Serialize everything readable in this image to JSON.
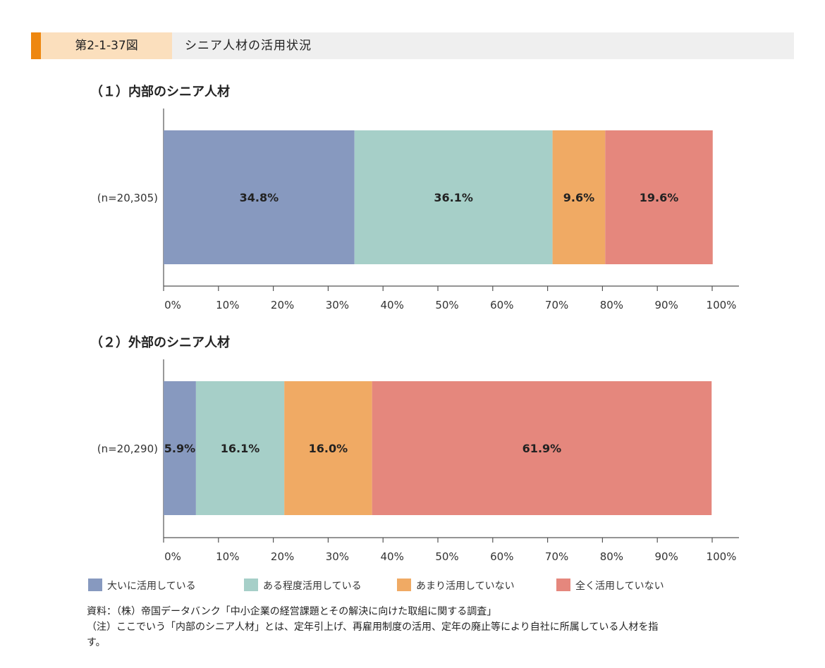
{
  "header": {
    "figure_number": "第2-1-37図",
    "title": "シニア人材の活用状況",
    "accent_color": "#ee8710"
  },
  "chart_data": {
    "type": "bar",
    "orientation": "horizontal-stacked-100",
    "xlim": [
      0,
      100
    ],
    "x_ticks": [
      "0%",
      "10%",
      "20%",
      "30%",
      "40%",
      "50%",
      "60%",
      "70%",
      "80%",
      "90%",
      "100%"
    ],
    "legend_position": "bottom",
    "series_colors": [
      "#8799bf",
      "#a6cfc8",
      "#f0aa64",
      "#e5877d"
    ],
    "series_names": [
      "大いに活用している",
      "ある程度活用している",
      "あまり活用していない",
      "全く活用していない"
    ],
    "panels": [
      {
        "title": "（１）内部のシニア人材",
        "category": "(n=20,305)",
        "values": [
          34.8,
          36.1,
          9.6,
          19.6
        ],
        "labels": [
          "34.8%",
          "36.1%",
          "9.6%",
          "19.6%"
        ]
      },
      {
        "title": "（２）外部のシニア人材",
        "category": "(n=20,290)",
        "values": [
          5.9,
          16.1,
          16.0,
          61.9
        ],
        "labels": [
          "5.9%",
          "16.1%",
          "16.0%",
          "61.9%"
        ]
      }
    ]
  },
  "footnotes": {
    "source": "資料：（株）帝国データバンク「中小企業の経営課題とその解決に向けた取組に関する調査」",
    "note_line1": "（注）ここでいう「内部のシニア人材」とは、定年引上げ、再雇用制度の活用、定年の廃止等により自社に所属している人材を指",
    "note_line2": "す。"
  }
}
